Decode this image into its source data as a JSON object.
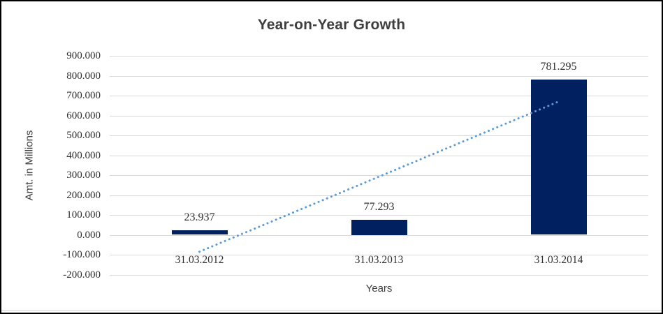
{
  "window": {
    "background": "#ffffff",
    "border_color": "#000000"
  },
  "chart_data": {
    "type": "bar",
    "title": "Year-on-Year Growth",
    "categories": [
      "31.03.2012",
      "31.03.2013",
      "31.03.2014"
    ],
    "values": [
      23.937,
      77.293,
      781.295
    ],
    "data_labels": [
      "23.937",
      "77.293",
      "781.295"
    ],
    "xlabel": "Years",
    "ylabel": "Amt. in Millions",
    "ylim": [
      -200,
      900
    ],
    "ytick_values": [
      900,
      800,
      700,
      600,
      500,
      400,
      300,
      200,
      100,
      0,
      -100,
      -200
    ],
    "ytick_labels": [
      "900.000",
      "800.000",
      "700.000",
      "600.000",
      "500.000",
      "400.000",
      "300.000",
      "200.000",
      "100.000",
      "0.000",
      "-100.000",
      "-200.000"
    ],
    "grid": true,
    "legend": "none",
    "bar_color": "#002060",
    "gridline_color": "#d9d9d9",
    "trendline": {
      "type": "linear",
      "style": "dotted",
      "color": "#5b9bd5",
      "start_value": -85,
      "end_value": 670
    }
  }
}
